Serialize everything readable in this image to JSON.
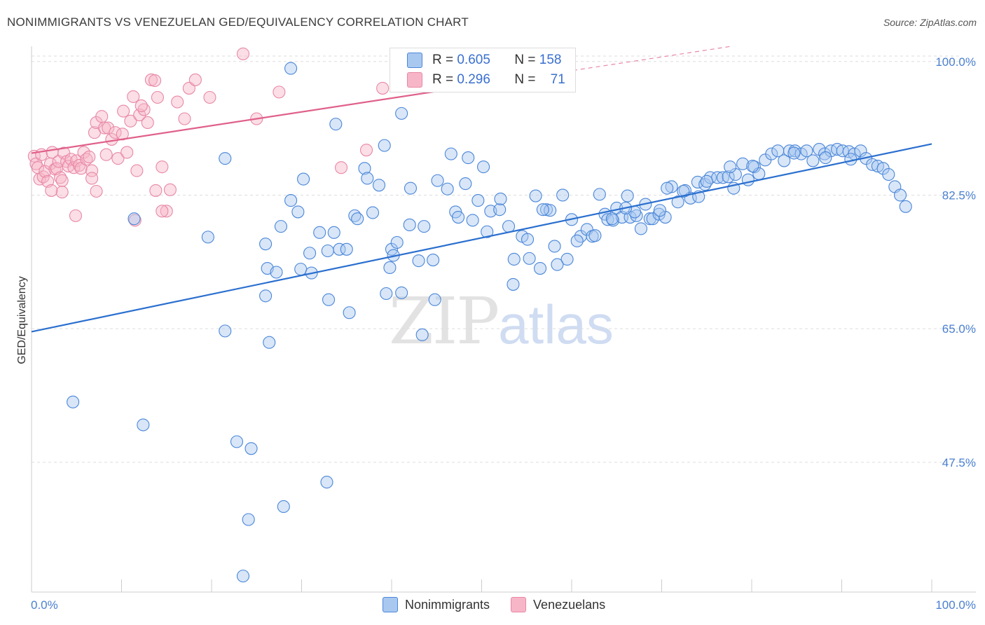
{
  "header": {
    "title": "NONIMMIGRANTS VS VENEZUELAN GED/EQUIVALENCY CORRELATION CHART",
    "source": "Source: ZipAtlas.com"
  },
  "legend": {
    "series1": {
      "r_label": "R =",
      "r_value": "0.605",
      "n_label": "N =",
      "n_value": "158"
    },
    "series2": {
      "r_label": "R =",
      "r_value": "0.296",
      "n_label": "N =",
      "n_value": "71"
    }
  },
  "bottom_legend": {
    "series1": "Nonimmigrants",
    "series2": "Venezuelans"
  },
  "watermark": {
    "zip": "ZIP",
    "atlas": "atlas"
  },
  "colors": {
    "blue_fill": "#a9c8f0",
    "blue_stroke": "#4a86d8",
    "blue_line": "#2a6fcf",
    "pink_fill": "#f7b6c8",
    "pink_stroke": "#e888a6",
    "pink_line": "#e0608a",
    "tick_text": "#4a7fd0",
    "grid": "#dddddd"
  },
  "chart_data": {
    "type": "scatter",
    "title": "NONIMMIGRANTS VS VENEZUELAN GED/EQUIVALENCY CORRELATION CHART",
    "xlabel": "",
    "ylabel": "GED/Equivalency",
    "xlim": [
      0,
      100
    ],
    "ylim": [
      30.5,
      102
    ],
    "x_tick_labels": [
      "0.0%",
      "100.0%"
    ],
    "y_ticks": [
      47.5,
      65.0,
      82.5,
      100.0
    ],
    "y_tick_labels": [
      "47.5%",
      "65.0%",
      "82.5%",
      "100.0%"
    ],
    "grid": "horizontal dashed",
    "series": [
      {
        "name": "Nonimmigrants",
        "color": "#a9c8f0",
        "trend": {
          "x0": 0,
          "y0": 64.6,
          "x1": 100,
          "y1": 89.2
        },
        "points": [
          [
            4.6,
            55.4
          ],
          [
            12.4,
            52.4
          ],
          [
            11.4,
            79.4
          ],
          [
            19.6,
            77.0
          ],
          [
            21.5,
            64.7
          ],
          [
            21.5,
            87.3
          ],
          [
            22.8,
            50.2
          ],
          [
            23.5,
            32.6
          ],
          [
            24.1,
            40.0
          ],
          [
            24.4,
            49.3
          ],
          [
            26.0,
            69.3
          ],
          [
            26.0,
            76.1
          ],
          [
            26.2,
            72.9
          ],
          [
            26.4,
            63.2
          ],
          [
            27.2,
            72.4
          ],
          [
            27.7,
            78.4
          ],
          [
            28.0,
            41.7
          ],
          [
            28.8,
            99.1
          ],
          [
            28.8,
            81.8
          ],
          [
            29.6,
            80.3
          ],
          [
            29.9,
            72.8
          ],
          [
            30.2,
            84.6
          ],
          [
            30.9,
            74.9
          ],
          [
            31.1,
            72.3
          ],
          [
            32.0,
            77.6
          ],
          [
            32.9,
            75.2
          ],
          [
            33.6,
            77.6
          ],
          [
            32.8,
            44.9
          ],
          [
            33.0,
            68.8
          ],
          [
            33.8,
            91.8
          ],
          [
            34.2,
            75.4
          ],
          [
            35.0,
            75.4
          ],
          [
            35.9,
            79.8
          ],
          [
            36.2,
            79.4
          ],
          [
            37.0,
            86.0
          ],
          [
            37.3,
            84.7
          ],
          [
            37.9,
            80.2
          ],
          [
            38.6,
            83.8
          ],
          [
            39.2,
            89.0
          ],
          [
            39.4,
            69.6
          ],
          [
            40.0,
            75.4
          ],
          [
            40.2,
            74.6
          ],
          [
            40.6,
            76.3
          ],
          [
            41.1,
            93.2
          ],
          [
            42.0,
            78.6
          ],
          [
            42.1,
            83.4
          ],
          [
            43.0,
            73.9
          ],
          [
            43.4,
            64.2
          ],
          [
            43.6,
            78.4
          ],
          [
            44.6,
            74.0
          ],
          [
            44.8,
            68.8
          ],
          [
            45.1,
            84.4
          ],
          [
            46.2,
            83.3
          ],
          [
            47.1,
            80.3
          ],
          [
            46.6,
            87.9
          ],
          [
            48.2,
            84.0
          ],
          [
            48.5,
            87.4
          ],
          [
            49.0,
            79.2
          ],
          [
            49.6,
            81.8
          ],
          [
            50.2,
            86.2
          ],
          [
            50.6,
            77.7
          ],
          [
            51.0,
            80.4
          ],
          [
            52.0,
            80.6
          ],
          [
            52.1,
            82.0
          ],
          [
            53.0,
            78.4
          ],
          [
            53.5,
            70.8
          ],
          [
            53.6,
            74.1
          ],
          [
            54.5,
            77.1
          ],
          [
            55.1,
            76.7
          ],
          [
            55.3,
            74.2
          ],
          [
            56.0,
            82.4
          ],
          [
            56.5,
            72.9
          ],
          [
            57.2,
            80.6
          ],
          [
            57.6,
            80.5
          ],
          [
            58.1,
            75.8
          ],
          [
            59.0,
            82.5
          ],
          [
            59.5,
            74.1
          ],
          [
            60.0,
            79.3
          ],
          [
            61.0,
            77.1
          ],
          [
            61.7,
            78.0
          ],
          [
            62.3,
            77.1
          ],
          [
            62.6,
            77.2
          ],
          [
            63.1,
            82.6
          ],
          [
            63.7,
            80.0
          ],
          [
            64.0,
            79.3
          ],
          [
            64.6,
            79.2
          ],
          [
            65.0,
            80.8
          ],
          [
            65.6,
            79.6
          ],
          [
            66.2,
            82.4
          ],
          [
            66.5,
            79.6
          ],
          [
            67.2,
            79.8
          ],
          [
            67.7,
            78.1
          ],
          [
            68.2,
            81.3
          ],
          [
            68.7,
            79.4
          ],
          [
            69.0,
            79.4
          ],
          [
            69.7,
            80.0
          ],
          [
            70.4,
            79.6
          ],
          [
            71.1,
            83.6
          ],
          [
            71.8,
            81.6
          ],
          [
            72.6,
            83.1
          ],
          [
            73.2,
            82.1
          ],
          [
            74.0,
            84.2
          ],
          [
            74.8,
            83.9
          ],
          [
            75.4,
            84.8
          ],
          [
            76.2,
            84.8
          ],
          [
            76.8,
            84.8
          ],
          [
            77.4,
            84.9
          ],
          [
            78.2,
            85.2
          ],
          [
            79.0,
            86.6
          ],
          [
            79.6,
            84.5
          ],
          [
            80.3,
            86.2
          ],
          [
            80.8,
            85.3
          ],
          [
            81.5,
            87.1
          ],
          [
            82.2,
            87.9
          ],
          [
            82.9,
            88.3
          ],
          [
            83.6,
            87.0
          ],
          [
            84.2,
            88.3
          ],
          [
            84.8,
            88.3
          ],
          [
            85.5,
            87.9
          ],
          [
            86.1,
            88.3
          ],
          [
            86.8,
            87.0
          ],
          [
            87.5,
            88.5
          ],
          [
            88.1,
            87.9
          ],
          [
            88.8,
            88.3
          ],
          [
            89.5,
            88.5
          ],
          [
            90.1,
            88.3
          ],
          [
            90.8,
            88.2
          ],
          [
            91.4,
            87.9
          ],
          [
            92.1,
            88.3
          ],
          [
            92.7,
            87.3
          ],
          [
            93.4,
            86.5
          ],
          [
            94.0,
            86.3
          ],
          [
            94.6,
            86.0
          ],
          [
            95.2,
            85.2
          ],
          [
            95.9,
            83.6
          ],
          [
            96.5,
            82.5
          ],
          [
            97.1,
            81.0
          ],
          [
            69.8,
            80.5
          ],
          [
            56.8,
            80.6
          ],
          [
            47.4,
            79.6
          ],
          [
            60.6,
            76.5
          ],
          [
            64.5,
            79.4
          ],
          [
            70.6,
            83.4
          ],
          [
            84.7,
            88.0
          ],
          [
            88.2,
            87.4
          ],
          [
            91.0,
            87.2
          ],
          [
            75.0,
            84.3
          ],
          [
            77.6,
            86.2
          ],
          [
            80.1,
            86.3
          ],
          [
            74.1,
            82.3
          ],
          [
            78.0,
            83.4
          ],
          [
            72.4,
            83.0
          ],
          [
            67.0,
            80.3
          ],
          [
            58.4,
            73.4
          ],
          [
            66.0,
            80.8
          ],
          [
            39.8,
            73.0
          ],
          [
            35.3,
            67.1
          ],
          [
            41.1,
            69.7
          ]
        ]
      },
      {
        "name": "Venezuelans",
        "color": "#f7b6c8",
        "trend": {
          "x0": 0,
          "y0": 88.0,
          "x1": 100,
          "y1": 106.0,
          "solid_until_x": 50
        },
        "points": [
          [
            0.3,
            87.6
          ],
          [
            0.5,
            86.6
          ],
          [
            0.7,
            86.1
          ],
          [
            0.9,
            84.6
          ],
          [
            1.1,
            87.8
          ],
          [
            1.3,
            84.9
          ],
          [
            1.5,
            85.6
          ],
          [
            1.8,
            84.3
          ],
          [
            2.1,
            86.6
          ],
          [
            2.3,
            88.1
          ],
          [
            2.6,
            85.9
          ],
          [
            2.8,
            86.0
          ],
          [
            3.0,
            86.9
          ],
          [
            3.2,
            84.8
          ],
          [
            3.4,
            84.4
          ],
          [
            3.6,
            88.0
          ],
          [
            3.9,
            86.9
          ],
          [
            4.1,
            86.3
          ],
          [
            4.4,
            87.2
          ],
          [
            4.7,
            86.1
          ],
          [
            5.0,
            87.0
          ],
          [
            5.3,
            86.4
          ],
          [
            5.5,
            86.0
          ],
          [
            5.8,
            88.1
          ],
          [
            6.1,
            87.2
          ],
          [
            6.4,
            87.5
          ],
          [
            6.7,
            85.7
          ],
          [
            7.0,
            90.7
          ],
          [
            7.2,
            92.0
          ],
          [
            7.8,
            92.8
          ],
          [
            8.1,
            91.3
          ],
          [
            8.5,
            91.3
          ],
          [
            8.9,
            89.8
          ],
          [
            9.3,
            90.7
          ],
          [
            9.6,
            87.3
          ],
          [
            10.2,
            93.5
          ],
          [
            10.6,
            88.1
          ],
          [
            11.0,
            92.2
          ],
          [
            11.3,
            95.4
          ],
          [
            11.7,
            85.7
          ],
          [
            12.0,
            93.0
          ],
          [
            12.5,
            93.7
          ],
          [
            12.9,
            92.0
          ],
          [
            13.3,
            97.6
          ],
          [
            13.7,
            97.5
          ],
          [
            14.0,
            95.3
          ],
          [
            14.5,
            86.2
          ],
          [
            15.0,
            80.4
          ],
          [
            15.4,
            83.2
          ],
          [
            16.2,
            94.7
          ],
          [
            17.0,
            92.5
          ],
          [
            17.5,
            96.5
          ],
          [
            18.2,
            97.6
          ],
          [
            19.8,
            95.3
          ],
          [
            23.5,
            101.0
          ],
          [
            25.0,
            92.5
          ],
          [
            27.5,
            96.0
          ],
          [
            34.4,
            86.1
          ],
          [
            37.2,
            88.4
          ],
          [
            39.0,
            96.5
          ],
          [
            11.5,
            79.2
          ],
          [
            13.8,
            83.1
          ],
          [
            14.5,
            80.4
          ],
          [
            12.2,
            94.2
          ],
          [
            10.1,
            90.5
          ],
          [
            8.3,
            87.8
          ],
          [
            6.7,
            84.7
          ],
          [
            3.4,
            82.9
          ],
          [
            2.2,
            83.1
          ],
          [
            7.2,
            83.0
          ],
          [
            4.9,
            79.8
          ]
        ]
      }
    ]
  }
}
